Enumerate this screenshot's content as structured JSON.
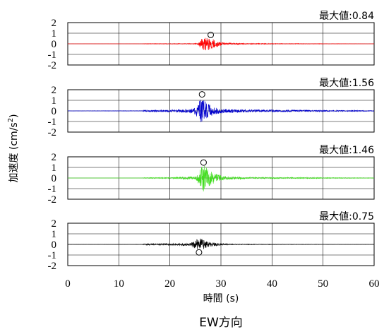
{
  "chart_data": {
    "type": "line",
    "caption": "EW方向",
    "xlabel": "時間 (s)",
    "ylabel_prefix": "加速度 (cm/s",
    "ylabel_sup": "2",
    "ylabel_suffix": ")",
    "xlim": [
      0,
      60
    ],
    "xticks": [
      0,
      10,
      20,
      30,
      40,
      50,
      60
    ],
    "ylim": [
      -2,
      2
    ],
    "yticks": [
      2,
      1,
      0,
      -1,
      -2
    ],
    "grid": true,
    "panels": [
      {
        "label": "最大値:0.84",
        "color": "#ff0000",
        "peak": {
          "t": 28.0,
          "a": 0.84
        },
        "envelope": [
          [
            0,
            0.005
          ],
          [
            14.5,
            0.005
          ],
          [
            15,
            0.02
          ],
          [
            24,
            0.03
          ],
          [
            25.5,
            0.05
          ],
          [
            26,
            0.45
          ],
          [
            27,
            0.7
          ],
          [
            28,
            0.55
          ],
          [
            29,
            0.35
          ],
          [
            30,
            0.15
          ],
          [
            32,
            0.07
          ],
          [
            35,
            0.04
          ],
          [
            48,
            0.02
          ],
          [
            60,
            0.005
          ]
        ]
      },
      {
        "label": "最大値:1.56",
        "color": "#0000cc",
        "peak": {
          "t": 26.3,
          "a": 1.56
        },
        "envelope": [
          [
            0,
            0.01
          ],
          [
            14.5,
            0.02
          ],
          [
            15,
            0.08
          ],
          [
            20,
            0.1
          ],
          [
            24,
            0.18
          ],
          [
            25.5,
            0.6
          ],
          [
            26,
            1.4
          ],
          [
            27,
            0.9
          ],
          [
            28,
            0.5
          ],
          [
            29,
            0.3
          ],
          [
            31,
            0.18
          ],
          [
            35,
            0.12
          ],
          [
            45,
            0.08
          ],
          [
            55,
            0.05
          ],
          [
            60,
            0.03
          ]
        ]
      },
      {
        "label": "最大値:1.46",
        "color": "#44dd22",
        "peak": {
          "t": 26.6,
          "a": 1.46
        },
        "envelope": [
          [
            0,
            0.005
          ],
          [
            14.5,
            0.01
          ],
          [
            15,
            0.04
          ],
          [
            20,
            0.05
          ],
          [
            25,
            0.15
          ],
          [
            25.8,
            0.7
          ],
          [
            26.5,
            1.3
          ],
          [
            27.5,
            0.8
          ],
          [
            29,
            0.4
          ],
          [
            31,
            0.15
          ],
          [
            35,
            0.08
          ],
          [
            45,
            0.05
          ],
          [
            60,
            0.02
          ]
        ]
      },
      {
        "label": "最大値:0.75",
        "color": "#000000",
        "peak": {
          "t": 25.7,
          "a": -0.75
        },
        "envelope": [
          [
            0,
            0.005
          ],
          [
            14.5,
            0.01
          ],
          [
            15,
            0.06
          ],
          [
            20,
            0.08
          ],
          [
            24,
            0.12
          ],
          [
            25,
            0.4
          ],
          [
            26,
            0.6
          ],
          [
            27,
            0.35
          ],
          [
            28,
            0.2
          ],
          [
            30,
            0.08
          ],
          [
            32,
            0.04
          ],
          [
            40,
            0.02
          ],
          [
            60,
            0.005
          ]
        ]
      }
    ]
  }
}
